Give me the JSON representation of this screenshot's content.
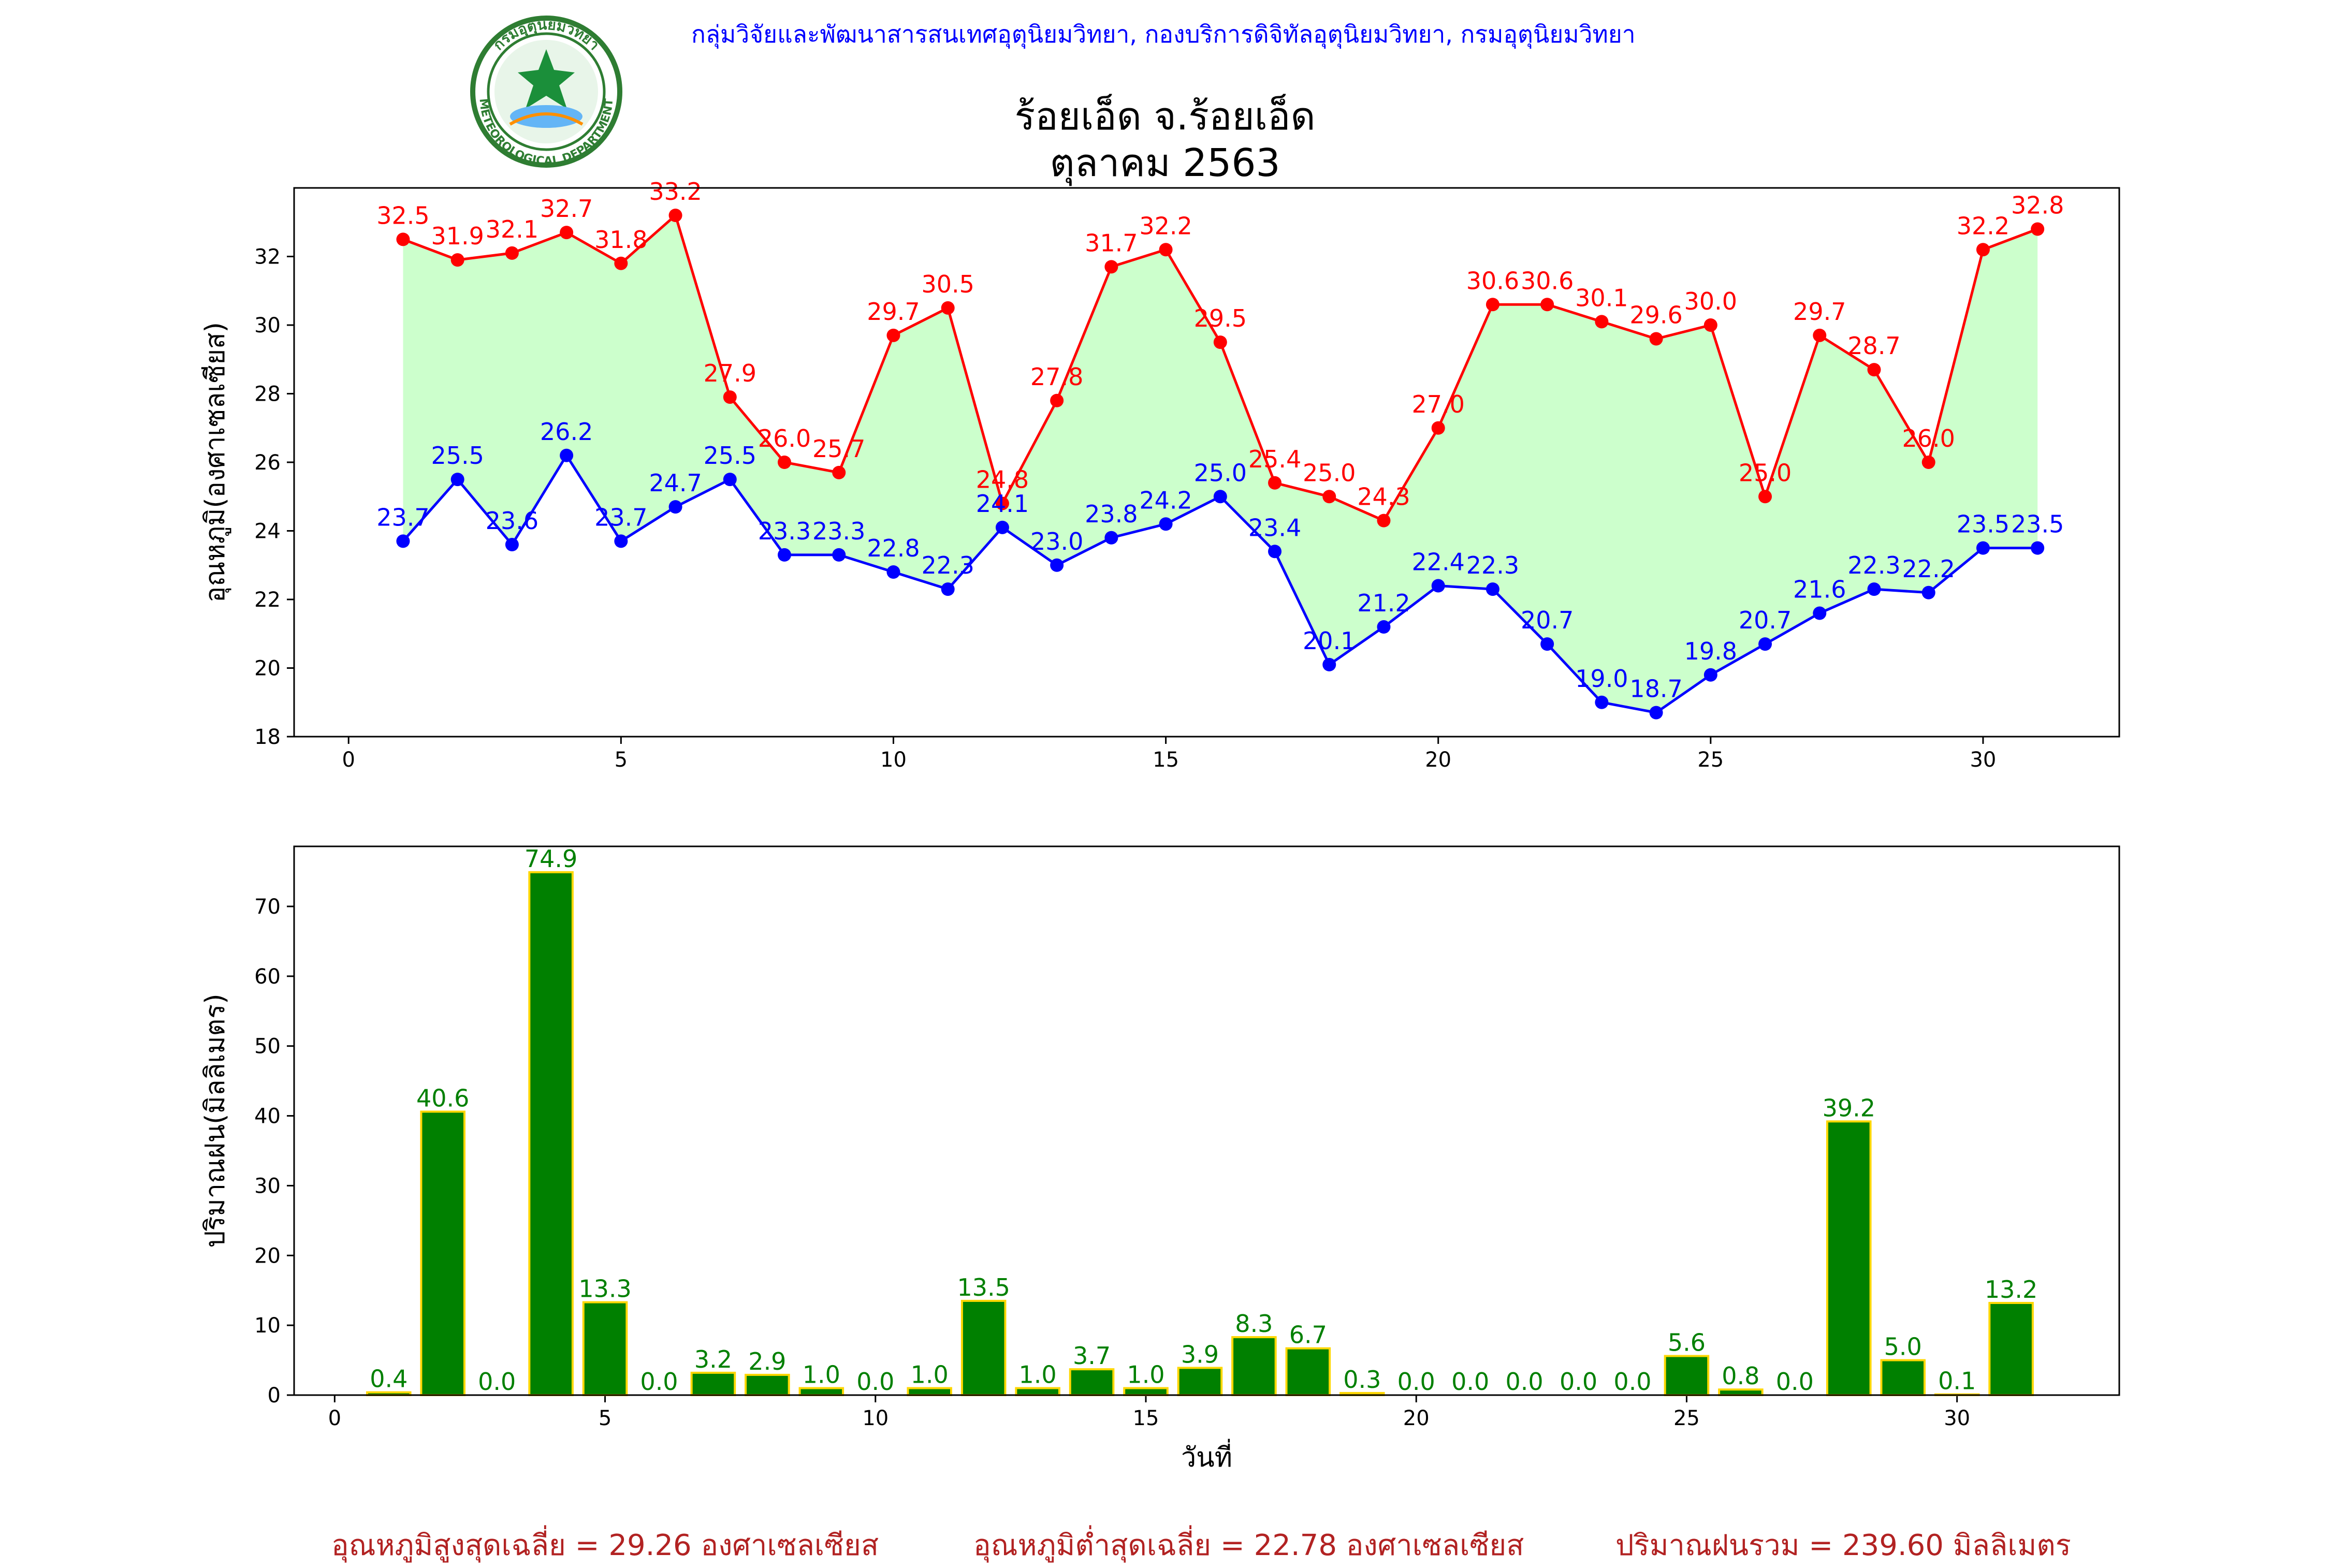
{
  "header": {
    "credit": "กลุ่มวิจัยและพัฒนาสารสนเทศอุตุนิยมวิทยา, กองบริการดิจิทัลอุตุนิยมวิทยา, กรมอุตุนิยมวิทยา",
    "title": "ร้อยเอ็ด จ.ร้อยเอ็ด",
    "subtitle": "ตุลาคม 2563",
    "logo": {
      "name": "meteorological-department-logo",
      "top_text": "กรมอุตุนิยมวิทยา",
      "bottom_text": "METEOROLOGICAL DEPARTMENT"
    }
  },
  "colors": {
    "max": "#ff0000",
    "min": "#0000ff",
    "fill": "#ccffcc",
    "bar": "#008000",
    "bar_edge": "#ffd700",
    "stats": "#b22222",
    "credit": "#0000ff"
  },
  "chart_data": [
    {
      "type": "line",
      "ylabel": "อุณหภูมิ(องศาเซลเซียส)",
      "x": [
        1,
        2,
        3,
        4,
        5,
        6,
        7,
        8,
        9,
        10,
        11,
        12,
        13,
        14,
        15,
        16,
        17,
        18,
        19,
        20,
        21,
        22,
        23,
        24,
        25,
        26,
        27,
        28,
        29,
        30,
        31
      ],
      "series": [
        {
          "key": "max",
          "values": [
            32.5,
            31.9,
            32.1,
            32.7,
            31.8,
            33.2,
            27.9,
            26.0,
            25.7,
            29.7,
            30.5,
            24.8,
            27.8,
            31.7,
            32.2,
            29.5,
            25.4,
            25.0,
            24.3,
            27.0,
            30.6,
            30.6,
            30.1,
            29.6,
            30.0,
            25.0,
            29.7,
            28.7,
            26.0,
            32.2,
            32.8
          ]
        },
        {
          "key": "min",
          "values": [
            23.7,
            25.5,
            23.6,
            26.2,
            23.7,
            24.7,
            25.5,
            23.3,
            23.3,
            22.8,
            22.3,
            24.1,
            23.0,
            23.8,
            24.2,
            25.0,
            23.4,
            20.1,
            21.2,
            22.4,
            22.3,
            20.7,
            19.0,
            18.7,
            19.8,
            20.7,
            21.6,
            22.3,
            22.2,
            23.5,
            23.5
          ]
        }
      ],
      "xlim": [
        -1,
        32.5
      ],
      "ylim": [
        18,
        34
      ],
      "xticks": [
        0,
        5,
        10,
        15,
        20,
        25,
        30
      ],
      "yticks": [
        18,
        20,
        22,
        24,
        26,
        28,
        30,
        32
      ],
      "fill_between": true,
      "grid": false
    },
    {
      "type": "bar",
      "xlabel": "วันที่",
      "ylabel": "ปริมาณฝน(มิลลิเมตร)",
      "x": [
        1,
        2,
        3,
        4,
        5,
        6,
        7,
        8,
        9,
        10,
        11,
        12,
        13,
        14,
        15,
        16,
        17,
        18,
        19,
        20,
        21,
        22,
        23,
        24,
        25,
        26,
        27,
        28,
        29,
        30,
        31
      ],
      "values": [
        0.4,
        40.6,
        0.0,
        74.9,
        13.3,
        0.0,
        3.2,
        2.9,
        1.0,
        0.0,
        1.0,
        13.5,
        1.0,
        3.7,
        1.0,
        3.9,
        8.3,
        6.7,
        0.3,
        0.0,
        0.0,
        0.0,
        0.0,
        0.0,
        5.6,
        0.8,
        0.0,
        39.2,
        5.0,
        0.1,
        13.2
      ],
      "value_labels": [
        "0.4",
        "40.6",
        "0.0",
        null,
        "13.3",
        "0.0",
        "3.2",
        "2.9",
        "1.0",
        "0.0",
        "1.0",
        "13.5",
        "1.0",
        "3.7",
        "1.0",
        "3.9",
        "8.3",
        "6.7",
        "0.3",
        "0.0",
        "0.0",
        "0.0",
        "0.0",
        "0.0",
        "5.6",
        "0.8",
        "0.0",
        "39.2",
        "5.0",
        "0.1",
        "13.2"
      ],
      "peak_label": "74.9",
      "xlim": [
        -0.75,
        33
      ],
      "ylim": [
        0,
        78.6
      ],
      "xticks": [
        0,
        5,
        10,
        15,
        20,
        25,
        30
      ],
      "yticks": [
        0,
        10,
        20,
        30,
        40,
        50,
        60,
        70
      ],
      "grid": false
    }
  ],
  "stats": {
    "avg_max": "อุณหภูมิสูงสุดเฉลี่ย = 29.26 องศาเซลเซียส",
    "avg_min": "อุณหภูมิต่ำสุดเฉลี่ย = 22.78 องศาเซลเซียส",
    "total_rain": "ปริมาณฝนรวม = 239.60 มิลลิเมตร"
  }
}
